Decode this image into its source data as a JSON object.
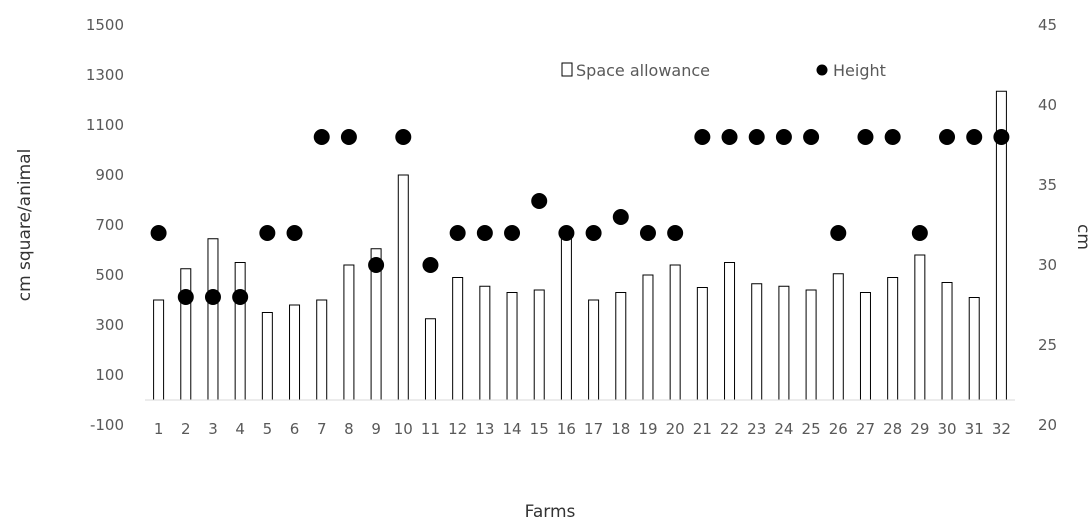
{
  "chart_data": {
    "type": "bar",
    "title": "",
    "xlabel": "Farms",
    "ylabel": "cm square/animal",
    "y2label": "cm",
    "categories": [
      "1",
      "2",
      "3",
      "4",
      "5",
      "6",
      "7",
      "8",
      "9",
      "10",
      "11",
      "12",
      "13",
      "14",
      "15",
      "16",
      "17",
      "18",
      "19",
      "20",
      "21",
      "22",
      "23",
      "24",
      "25",
      "26",
      "27",
      "28",
      "29",
      "30",
      "31",
      "32"
    ],
    "ylim": [
      -100,
      1500
    ],
    "yticks": [
      "-100",
      "100",
      "300",
      "500",
      "700",
      "900",
      "1100",
      "1300",
      "1500"
    ],
    "y2lim": [
      20,
      45
    ],
    "y2ticks": [
      "20",
      "25",
      "30",
      "35",
      "40",
      "45"
    ],
    "grid": false,
    "legend_position": "top-right",
    "series": [
      {
        "name": "Space allowance",
        "type": "bar",
        "axis": "left",
        "color": "#ffffff",
        "stroke": "#000000",
        "values": [
          400,
          525,
          645,
          550,
          350,
          380,
          400,
          540,
          605,
          900,
          325,
          490,
          455,
          430,
          440,
          670,
          400,
          430,
          500,
          540,
          450,
          550,
          465,
          455,
          440,
          505,
          430,
          490,
          580,
          470,
          410,
          1235
        ]
      },
      {
        "name": "Height",
        "type": "scatter",
        "axis": "right",
        "color": "#000000",
        "values": [
          32,
          28,
          28,
          28,
          32,
          32,
          38,
          38,
          30,
          38,
          30,
          32,
          32,
          32,
          34,
          32,
          32,
          33,
          32,
          32,
          38,
          38,
          38,
          38,
          38,
          32,
          38,
          38,
          32,
          38,
          38,
          38
        ]
      }
    ]
  }
}
